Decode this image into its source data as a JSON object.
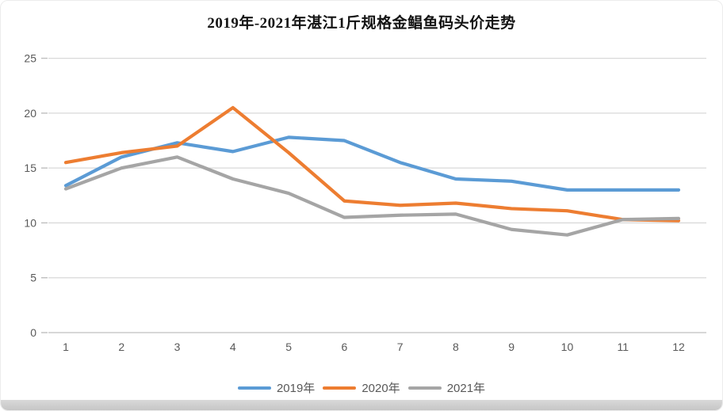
{
  "card": {
    "title": "2019年-2021年湛江1斤规格金鲳鱼码头价走势"
  },
  "chart_data": {
    "type": "line",
    "title": "2019年-2021年湛江1斤规格金鲳鱼码头价走势",
    "xlabel": "",
    "ylabel": "",
    "x": [
      1,
      2,
      3,
      4,
      5,
      6,
      7,
      8,
      9,
      10,
      11,
      12
    ],
    "categories": [
      "1",
      "2",
      "3",
      "4",
      "5",
      "6",
      "7",
      "8",
      "9",
      "10",
      "11",
      "12"
    ],
    "series": [
      {
        "name": "2019年",
        "color": "#5B9BD5",
        "values": [
          13.4,
          16.0,
          17.3,
          16.5,
          17.8,
          17.5,
          15.5,
          14.0,
          13.8,
          13.0,
          13.0,
          13.0
        ]
      },
      {
        "name": "2020年",
        "color": "#ED7D31",
        "values": [
          15.5,
          16.4,
          17.0,
          20.5,
          16.4,
          12.0,
          11.6,
          11.8,
          11.3,
          11.1,
          10.3,
          10.2
        ]
      },
      {
        "name": "2021年",
        "color": "#A5A5A5",
        "values": [
          13.1,
          15.0,
          16.0,
          14.0,
          12.7,
          10.5,
          10.7,
          10.8,
          9.4,
          8.9,
          10.3,
          10.4
        ]
      }
    ],
    "ylim": [
      0,
      25
    ],
    "y_ticks": [
      0,
      5,
      10,
      15,
      20,
      25
    ],
    "grid": true,
    "legend_position": "bottom",
    "colors": {
      "gridline": "#D9D9D9",
      "axis_tick": "#BFBFBF",
      "tick_text": "#595959",
      "title_text": "#141414"
    }
  }
}
